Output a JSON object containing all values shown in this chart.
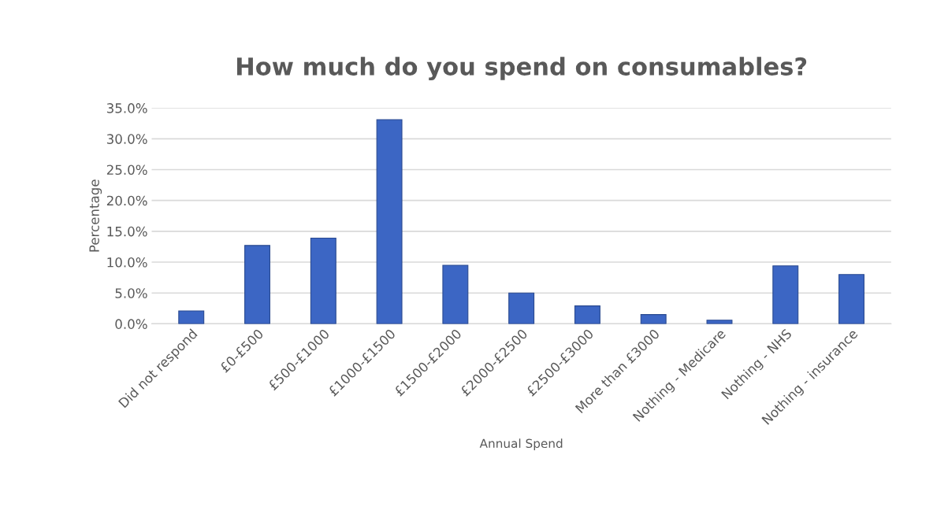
{
  "chart_data": {
    "type": "bar",
    "title": "How much do you spend on consumables?",
    "xlabel": "Annual Spend",
    "ylabel": "Percentage",
    "categories": [
      "Did not respond",
      "£0-£500",
      "£500-£1000",
      "£1000-£1500",
      "£1500-£2000",
      "£2000-£2500",
      "£2500-£3000",
      "More than £3000",
      "Nothing - Medicare",
      "Nothing - NHS",
      "Nothing - insurance"
    ],
    "values": [
      2.1,
      12.7,
      13.9,
      33.1,
      9.5,
      5.0,
      2.9,
      1.5,
      0.6,
      9.4,
      8.0
    ],
    "color": "#3c66c4",
    "ylim": [
      0,
      35
    ],
    "yticks": [
      {
        "value": 0,
        "label": "0.0%"
      },
      {
        "value": 5,
        "label": "5.0%"
      },
      {
        "value": 10,
        "label": "10.0%"
      },
      {
        "value": 15,
        "label": "15.0%"
      },
      {
        "value": 20,
        "label": "20.0%"
      },
      {
        "value": 25,
        "label": "25.0%"
      },
      {
        "value": 30,
        "label": "30.0%"
      },
      {
        "value": 35,
        "label": "35.0%"
      }
    ],
    "grid": "y"
  }
}
